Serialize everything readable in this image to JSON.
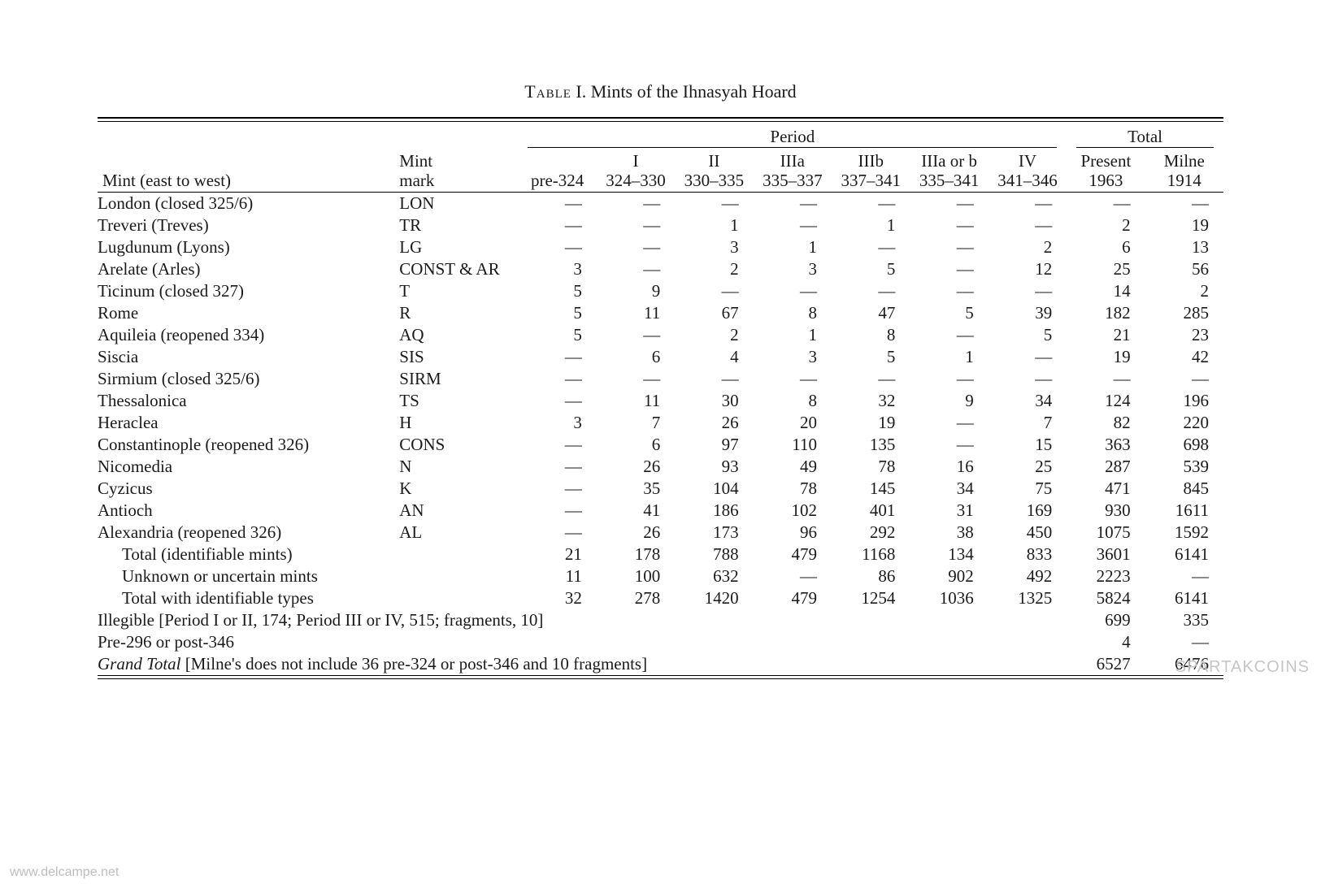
{
  "caption_prefix": "Table",
  "caption_number": "I.",
  "caption_text": "Mints of the Ihnasyah Hoard",
  "group_period": "Period",
  "group_total": "Total",
  "head_mint": "Mint (east to west)",
  "head_mark": "Mint mark",
  "cols": {
    "p0": {
      "top": "",
      "bot": "pre-324"
    },
    "p1": {
      "top": "I",
      "bot": "324–330"
    },
    "p2": {
      "top": "II",
      "bot": "330–335"
    },
    "p3": {
      "top": "IIIa",
      "bot": "335–337"
    },
    "p4": {
      "top": "IIIb",
      "bot": "337–341"
    },
    "p5": {
      "top": "IIIa or b",
      "bot": "335–341"
    },
    "p6": {
      "top": "IV",
      "bot": "341–346"
    },
    "t1": {
      "top": "Present",
      "bot": "1963"
    },
    "t2": {
      "top": "Milne",
      "bot": "1914"
    }
  },
  "em": "—",
  "rows": [
    {
      "mint": "London (closed 325/6)",
      "mark": "LON",
      "v": [
        "—",
        "—",
        "—",
        "—",
        "—",
        "—",
        "—",
        "—",
        "—"
      ]
    },
    {
      "mint": "Treveri (Treves)",
      "mark": "TR",
      "v": [
        "—",
        "—",
        "1",
        "—",
        "1",
        "—",
        "—",
        "2",
        "19"
      ]
    },
    {
      "mint": "Lugdunum (Lyons)",
      "mark": "LG",
      "v": [
        "—",
        "—",
        "3",
        "1",
        "—",
        "—",
        "2",
        "6",
        "13"
      ]
    },
    {
      "mint": "Arelate (Arles)",
      "mark": "CONST & AR",
      "v": [
        "3",
        "—",
        "2",
        "3",
        "5",
        "—",
        "12",
        "25",
        "56"
      ]
    },
    {
      "mint": "Ticinum (closed 327)",
      "mark": "T",
      "v": [
        "5",
        "9",
        "—",
        "—",
        "—",
        "—",
        "—",
        "14",
        "2"
      ]
    },
    {
      "mint": "Rome",
      "mark": "R",
      "v": [
        "5",
        "11",
        "67",
        "8",
        "47",
        "5",
        "39",
        "182",
        "285"
      ]
    },
    {
      "mint": "Aquileia (reopened 334)",
      "mark": "AQ",
      "v": [
        "5",
        "—",
        "2",
        "1",
        "8",
        "—",
        "5",
        "21",
        "23"
      ]
    },
    {
      "mint": "Siscia",
      "mark": "SIS",
      "v": [
        "—",
        "6",
        "4",
        "3",
        "5",
        "1",
        "—",
        "19",
        "42"
      ]
    },
    {
      "mint": "Sirmium (closed 325/6)",
      "mark": "SIRM",
      "v": [
        "—",
        "—",
        "—",
        "—",
        "—",
        "—",
        "—",
        "—",
        "—"
      ]
    },
    {
      "mint": "Thessalonica",
      "mark": "TS",
      "v": [
        "—",
        "11",
        "30",
        "8",
        "32",
        "9",
        "34",
        "124",
        "196"
      ]
    },
    {
      "mint": "Heraclea",
      "mark": "H",
      "v": [
        "3",
        "7",
        "26",
        "20",
        "19",
        "—",
        "7",
        "82",
        "220"
      ]
    },
    {
      "mint": "Constantinople (reopened 326)",
      "mark": "CONS",
      "v": [
        "—",
        "6",
        "97",
        "110",
        "135",
        "—",
        "15",
        "363",
        "698"
      ]
    },
    {
      "mint": "Nicomedia",
      "mark": "N",
      "v": [
        "—",
        "26",
        "93",
        "49",
        "78",
        "16",
        "25",
        "287",
        "539"
      ]
    },
    {
      "mint": "Cyzicus",
      "mark": "K",
      "v": [
        "—",
        "35",
        "104",
        "78",
        "145",
        "34",
        "75",
        "471",
        "845"
      ]
    },
    {
      "mint": "Antioch",
      "mark": "AN",
      "v": [
        "—",
        "41",
        "186",
        "102",
        "401",
        "31",
        "169",
        "930",
        "1611"
      ]
    },
    {
      "mint": "Alexandria (reopened 326)",
      "mark": "AL",
      "v": [
        "—",
        "26",
        "173",
        "96",
        "292",
        "38",
        "450",
        "1075",
        "1592"
      ]
    }
  ],
  "subtotals": [
    {
      "mint": "Total (identifiable mints)",
      "v": [
        "21",
        "178",
        "788",
        "479",
        "1168",
        "134",
        "833",
        "3601",
        "6141"
      ],
      "indent": true
    },
    {
      "mint": "Unknown or uncertain mints",
      "v": [
        "11",
        "100",
        "632",
        "—",
        "86",
        "902",
        "492",
        "2223",
        "—"
      ],
      "indent": true
    },
    {
      "mint": "Total with identifiable types",
      "v": [
        "32",
        "278",
        "1420",
        "479",
        "1254",
        "1036",
        "1325",
        "5824",
        "6141"
      ],
      "indent": true
    }
  ],
  "notes": [
    {
      "text": "Illegible [Period I or II, 174; Period III or IV, 515; fragments, 10]",
      "t1": "699",
      "t2": "335"
    },
    {
      "text": "Pre-296 or post-346",
      "t1": "4",
      "t2": "—"
    }
  ],
  "grand": {
    "label": "Grand Total",
    "rest": " [Milne's does not include 36 pre-324 or post-346 and 10 fragments]",
    "t1": "6527",
    "t2": "6476"
  },
  "watermark_left": "www.delcampe.net",
  "watermark_right": "SPARTAKCOINS"
}
